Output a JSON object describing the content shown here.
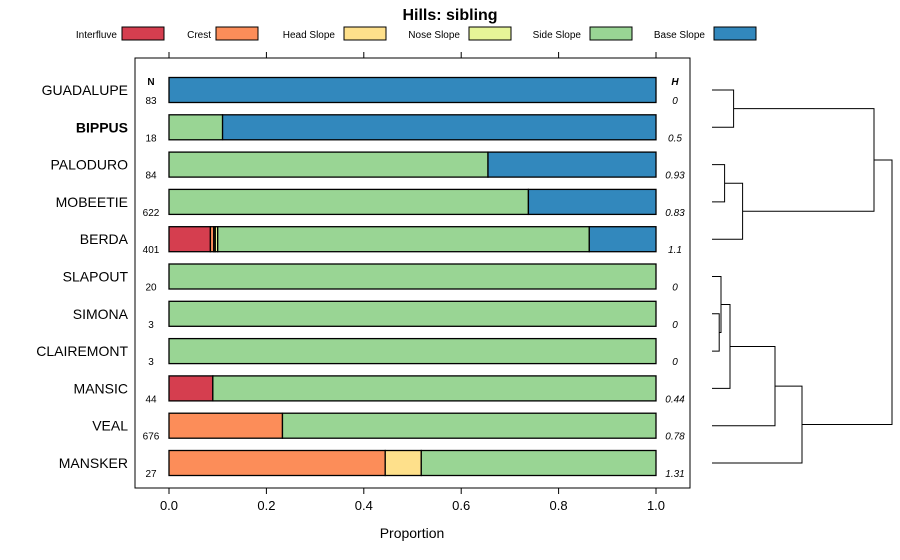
{
  "chart_data": {
    "type": "bar",
    "orientation": "horizontal-stacked",
    "title": "Hills: sibling",
    "xlabel": "Proportion",
    "xlim": [
      0,
      1
    ],
    "xticks": [
      "0.0",
      "0.2",
      "0.4",
      "0.6",
      "0.8",
      "1.0"
    ],
    "xtick_values": [
      0,
      0.2,
      0.4,
      0.6,
      0.8,
      1.0
    ],
    "n_header": "N",
    "h_header": "H",
    "legend_position": "top",
    "series": [
      {
        "name": "Interfluve",
        "color": "#D53E4F"
      },
      {
        "name": "Crest",
        "color": "#FC8D59"
      },
      {
        "name": "Head Slope",
        "color": "#FEE08B"
      },
      {
        "name": "Nose Slope",
        "color": "#E6F598"
      },
      {
        "name": "Side Slope",
        "color": "#99D594"
      },
      {
        "name": "Base Slope",
        "color": "#3288BD"
      }
    ],
    "rows": [
      {
        "name": "GUADALUPE",
        "bold": false,
        "n": "83",
        "h": "0",
        "values": [
          0,
          0,
          0,
          0,
          0,
          1.0
        ]
      },
      {
        "name": "BIPPUS",
        "bold": true,
        "n": "18",
        "h": "0.5",
        "values": [
          0,
          0,
          0,
          0,
          0.11,
          0.89
        ]
      },
      {
        "name": "PALODURO",
        "bold": false,
        "n": "84",
        "h": "0.93",
        "values": [
          0,
          0,
          0,
          0,
          0.655,
          0.345
        ]
      },
      {
        "name": "MOBEETIE",
        "bold": false,
        "n": "622",
        "h": "0.83",
        "values": [
          0,
          0,
          0,
          0,
          0.738,
          0.262
        ]
      },
      {
        "name": "BERDA",
        "bold": false,
        "n": "401",
        "h": "1.1",
        "values": [
          0.085,
          0.007,
          0.003,
          0.005,
          0.763,
          0.137
        ]
      },
      {
        "name": "SLAPOUT",
        "bold": false,
        "n": "20",
        "h": "0",
        "values": [
          0,
          0,
          0,
          0,
          1.0,
          0
        ]
      },
      {
        "name": "SIMONA",
        "bold": false,
        "n": "3",
        "h": "0",
        "values": [
          0,
          0,
          0,
          0,
          1.0,
          0
        ]
      },
      {
        "name": "CLAIREMONT",
        "bold": false,
        "n": "3",
        "h": "0",
        "values": [
          0,
          0,
          0,
          0,
          1.0,
          0
        ]
      },
      {
        "name": "MANSIC",
        "bold": false,
        "n": "44",
        "h": "0.44",
        "values": [
          0.09,
          0,
          0,
          0,
          0.91,
          0
        ]
      },
      {
        "name": "VEAL",
        "bold": false,
        "n": "676",
        "h": "0.78",
        "values": [
          0,
          0.233,
          0,
          0,
          0.767,
          0
        ]
      },
      {
        "name": "MANSKER",
        "bold": false,
        "n": "27",
        "h": "1.31",
        "values": [
          0,
          0.444,
          0.074,
          0,
          0.482,
          0
        ]
      }
    ],
    "dendrogram": {
      "merges": [
        {
          "a": 6,
          "b": 7,
          "height": 0.04
        },
        {
          "a": 5,
          "b": "m0",
          "height": 0.05
        },
        {
          "a": 2,
          "b": 3,
          "height": 0.07
        },
        {
          "a": 8,
          "b": "m1",
          "height": 0.1
        },
        {
          "a": 0,
          "b": 1,
          "height": 0.12
        },
        {
          "a": "m2",
          "b": 4,
          "height": 0.17
        },
        {
          "a": "m3",
          "b": 9,
          "height": 0.35
        },
        {
          "a": "m6",
          "b": 10,
          "height": 0.5
        },
        {
          "a": "m4",
          "b": "m5",
          "height": 0.9
        },
        {
          "a": "m8",
          "b": "m7",
          "height": 1.0
        }
      ]
    }
  }
}
